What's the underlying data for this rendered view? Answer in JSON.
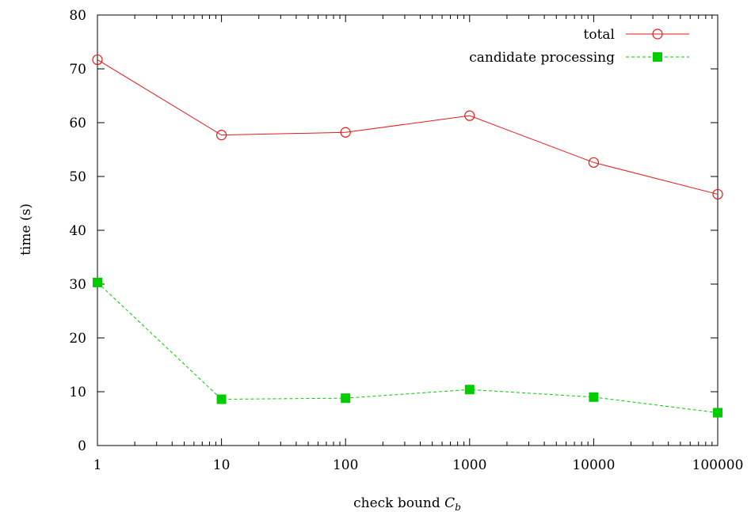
{
  "chart_data": {
    "type": "line",
    "x_scale": "log",
    "x": [
      1,
      10,
      100,
      1000,
      10000,
      100000
    ],
    "x_tick_labels": [
      "1",
      "10",
      "100",
      "1000",
      "10000",
      "100000"
    ],
    "y_ticks": [
      0,
      10,
      20,
      30,
      40,
      50,
      60,
      70,
      80
    ],
    "xlim": [
      1,
      100000
    ],
    "ylim": [
      0,
      80
    ],
    "xlabel_main": "check bound ",
    "xlabel_symbol": "C",
    "xlabel_subscript": "b",
    "ylabel": "time (s)",
    "legend_position": "top-right",
    "grid": false,
    "series": [
      {
        "name": "total",
        "color": "#e41a1a",
        "marker": "open-circle",
        "line": "solid",
        "values": [
          71.7,
          57.7,
          58.2,
          61.3,
          52.6,
          46.7
        ]
      },
      {
        "name": "candidate processing",
        "color": "#00cc00",
        "marker": "filled-square",
        "line": "dashed",
        "values": [
          30.3,
          8.6,
          8.8,
          10.4,
          9.0,
          6.1
        ]
      }
    ]
  }
}
